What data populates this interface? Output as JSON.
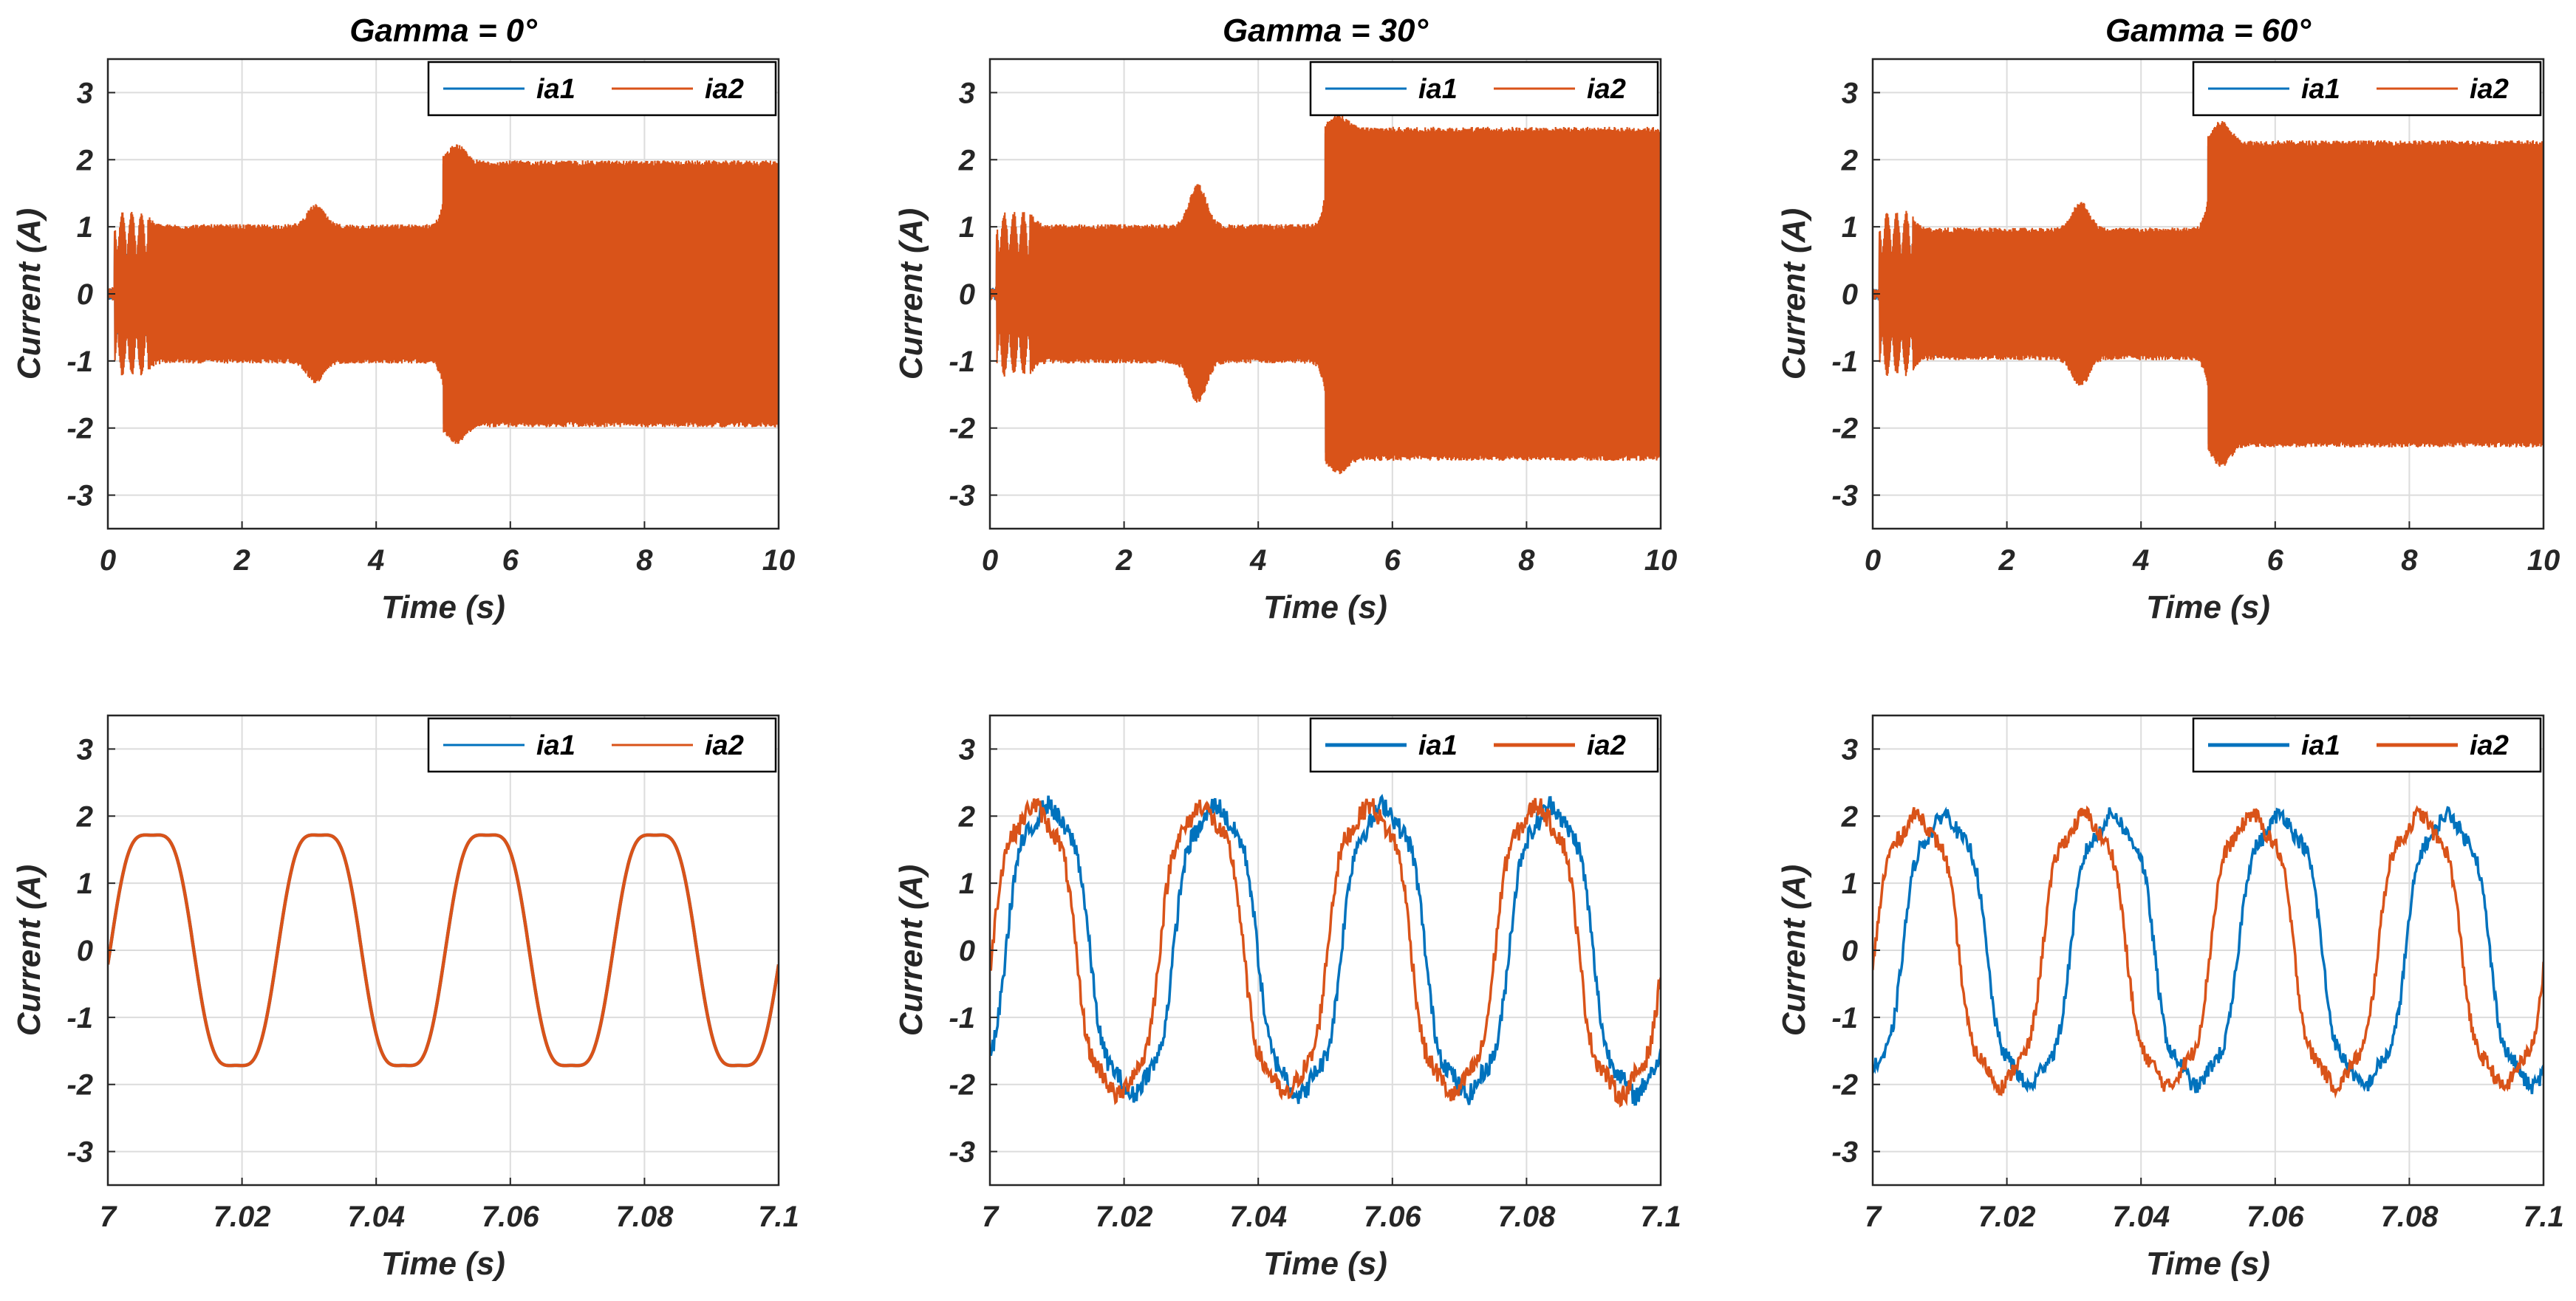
{
  "colors": {
    "ia1": "#0072BD",
    "ia2": "#D95319",
    "grid": "#DCDCDC",
    "axis": "#262626"
  },
  "chart_data": [
    {
      "id": "p1",
      "type": "line",
      "title": "Gamma = 0°",
      "xlabel": "Time (s)",
      "ylabel": "Current (A)",
      "xlim": [
        0,
        10
      ],
      "ylim": [
        -3.5,
        3.5
      ],
      "grid": true,
      "legend": "top-right",
      "xticks": [
        "0",
        "2",
        "4",
        "6",
        "8",
        "10"
      ],
      "yticks": [
        "3",
        "2",
        "1",
        "0",
        "-1",
        "-2",
        "-3"
      ],
      "series": [
        {
          "name": "ia1",
          "amplitude_by_segment": [
            [
              0.6,
              3.1,
              1.0
            ],
            [
              3.1,
              5.0,
              1.0
            ],
            [
              5.0,
              10,
              1.95
            ]
          ]
        },
        {
          "name": "ia2",
          "amplitude_by_segment": [
            [
              0.6,
              3.1,
              1.0
            ],
            [
              3.1,
              5.0,
              1.0
            ],
            [
              5.0,
              10,
              1.95
            ]
          ]
        }
      ],
      "transients": [
        {
          "t": 0.45,
          "peak": 1.25
        },
        {
          "t": 3.1,
          "peak": 1.3
        },
        {
          "t": 5.2,
          "peak": 2.2
        }
      ]
    },
    {
      "id": "p2",
      "type": "line",
      "title": "Gamma = 30°",
      "xlabel": "Time (s)",
      "ylabel": "Current (A)",
      "xlim": [
        0,
        10
      ],
      "ylim": [
        -3.5,
        3.5
      ],
      "grid": true,
      "legend": "top-right",
      "xticks": [
        "0",
        "2",
        "4",
        "6",
        "8",
        "10"
      ],
      "yticks": [
        "3",
        "2",
        "1",
        "0",
        "-1",
        "-2",
        "-3"
      ],
      "series": [
        {
          "name": "ia1",
          "amplitude_by_segment": [
            [
              0.6,
              3.1,
              1.0
            ],
            [
              3.1,
              5.0,
              1.0
            ],
            [
              5.0,
              10,
              2.45
            ]
          ]
        },
        {
          "name": "ia2",
          "amplitude_by_segment": [
            [
              0.6,
              3.1,
              1.0
            ],
            [
              3.1,
              5.0,
              1.0
            ],
            [
              5.0,
              10,
              2.45
            ]
          ]
        }
      ],
      "transients": [
        {
          "t": 0.45,
          "peak": 1.4
        },
        {
          "t": 3.1,
          "peak": 1.6
        },
        {
          "t": 5.2,
          "peak": 2.65
        }
      ]
    },
    {
      "id": "p3",
      "type": "line",
      "title": "Gamma = 60°",
      "xlabel": "Time (s)",
      "ylabel": "Current (A)",
      "xlim": [
        0,
        10
      ],
      "ylim": [
        -3.5,
        3.5
      ],
      "grid": true,
      "legend": "top-right",
      "xticks": [
        "0",
        "2",
        "4",
        "6",
        "8",
        "10"
      ],
      "yticks": [
        "3",
        "2",
        "1",
        "0",
        "-1",
        "-2",
        "-3"
      ],
      "series": [
        {
          "name": "ia1",
          "amplitude_by_segment": [
            [
              0.6,
              3.1,
              0.95
            ],
            [
              3.1,
              5.0,
              0.95
            ],
            [
              5.0,
              10,
              2.25
            ]
          ]
        },
        {
          "name": "ia2",
          "amplitude_by_segment": [
            [
              0.6,
              3.1,
              0.95
            ],
            [
              3.1,
              5.0,
              0.95
            ],
            [
              5.0,
              10,
              2.25
            ]
          ]
        }
      ],
      "transients": [
        {
          "t": 0.45,
          "peak": 1.3
        },
        {
          "t": 3.1,
          "peak": 1.35
        },
        {
          "t": 5.2,
          "peak": 2.55
        }
      ]
    },
    {
      "id": "p4",
      "type": "line",
      "title": "",
      "xlabel": "Time (s)",
      "ylabel": "Current (A)",
      "xlim": [
        7,
        7.1
      ],
      "ylim": [
        -3.5,
        3.5
      ],
      "grid": true,
      "legend": "top-right",
      "xticks": [
        "7",
        "7.02",
        "7.04",
        "7.06",
        "7.08",
        "7.1"
      ],
      "yticks": [
        "3",
        "2",
        "1",
        "0",
        "-1",
        "-2",
        "-3"
      ],
      "series": [
        {
          "name": "ia1",
          "amplitude": 1.95,
          "frequency_hz": 40,
          "phase_deg": 0,
          "ripple": 0
        },
        {
          "name": "ia2",
          "amplitude": 1.95,
          "frequency_hz": 40,
          "phase_deg": 0,
          "ripple": 0
        }
      ]
    },
    {
      "id": "p5",
      "type": "line",
      "title": "",
      "xlabel": "Time (s)",
      "ylabel": "Current (A)",
      "xlim": [
        7,
        7.1
      ],
      "ylim": [
        -3.5,
        3.5
      ],
      "grid": true,
      "legend": "top-right",
      "xticks": [
        "7",
        "7.02",
        "7.04",
        "7.06",
        "7.08",
        "7.1"
      ],
      "yticks": [
        "3",
        "2",
        "1",
        "0",
        "-1",
        "-2",
        "-3"
      ],
      "series": [
        {
          "name": "ia1",
          "amplitude": 2.3,
          "frequency_hz": 40,
          "phase_deg": -30,
          "ripple": 0.15
        },
        {
          "name": "ia2",
          "amplitude": 2.3,
          "frequency_hz": 40,
          "phase_deg": 0,
          "ripple": 0.15
        }
      ]
    },
    {
      "id": "p6",
      "type": "line",
      "title": "",
      "xlabel": "Time (s)",
      "ylabel": "Current (A)",
      "xlim": [
        7,
        7.1
      ],
      "ylim": [
        -3.5,
        3.5
      ],
      "grid": true,
      "legend": "top-right",
      "xticks": [
        "7",
        "7.02",
        "7.04",
        "7.06",
        "7.08",
        "7.1"
      ],
      "yticks": [
        "3",
        "2",
        "1",
        "0",
        "-1",
        "-2",
        "-3"
      ],
      "series": [
        {
          "name": "ia1",
          "amplitude": 2.15,
          "frequency_hz": 40,
          "phase_deg": -60,
          "ripple": 0.12
        },
        {
          "name": "ia2",
          "amplitude": 2.15,
          "frequency_hz": 40,
          "phase_deg": 0,
          "ripple": 0.12
        }
      ]
    }
  ]
}
